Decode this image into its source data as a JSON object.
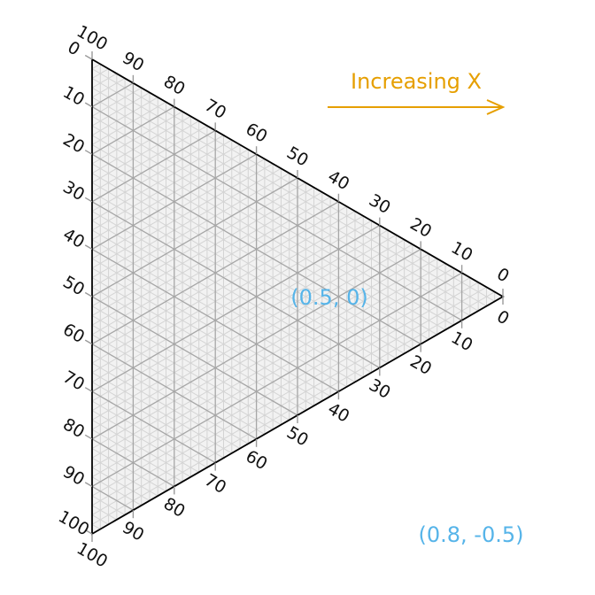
{
  "chart_data": {
    "type": "ternary",
    "axes": {
      "left": {
        "ticks": [
          "0",
          "10",
          "20",
          "30",
          "40",
          "50",
          "60",
          "70",
          "80",
          "90",
          "100"
        ]
      },
      "top": {
        "ticks": [
          "100",
          "90",
          "80",
          "70",
          "60",
          "50",
          "40",
          "30",
          "20",
          "10",
          "0"
        ]
      },
      "right": {
        "ticks": [
          "0",
          "10",
          "20",
          "30",
          "40",
          "50",
          "60",
          "70",
          "80",
          "90",
          "100"
        ]
      }
    },
    "grid": {
      "major_step": 10,
      "minor_step": 2,
      "shown": true
    },
    "annotations": [
      {
        "text": "Increasing X",
        "color": "#E69F00",
        "arrow": "right"
      },
      {
        "text": "(0.5, 0)",
        "color": "#56B4E9"
      },
      {
        "text": "(0.8, -0.5)",
        "color": "#56B4E9"
      }
    ],
    "colors": {
      "outline": "#000000",
      "major_grid": "#a6a6a6",
      "minor_grid": "#d4d4d4",
      "fill": "#f2f2f2"
    }
  }
}
